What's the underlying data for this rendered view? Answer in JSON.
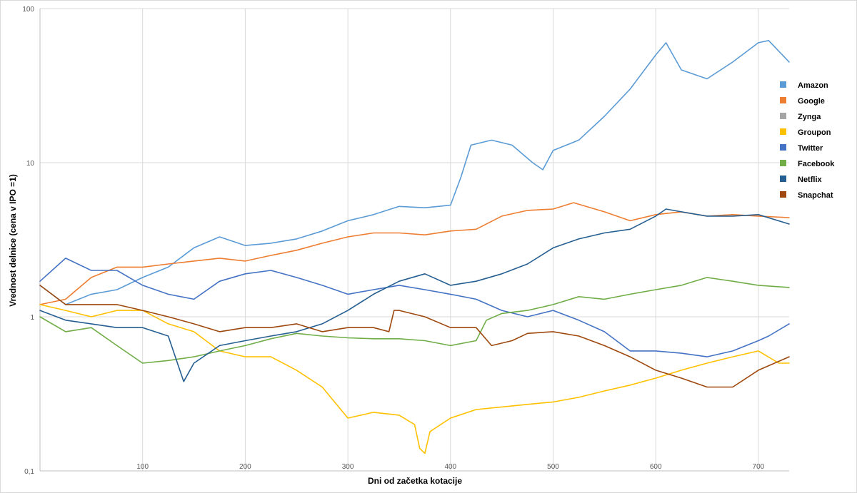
{
  "chart_data": {
    "type": "line",
    "xlabel": "Dni od začetka kotacije",
    "ylabel": "Vrednost delnice   (cena v IPO =1)",
    "yscale": "log",
    "xlim": [
      0,
      730
    ],
    "ylim": [
      0.1,
      100
    ],
    "xticks": [
      100,
      200,
      300,
      400,
      500,
      600,
      700
    ],
    "yticks": [
      0.1,
      1,
      10,
      100
    ],
    "ytick_labels": [
      "0,1",
      "1",
      "10",
      "100"
    ],
    "grid": true,
    "legend_position": "right",
    "series": [
      {
        "name": "Amazon",
        "color": "#5b9bd5",
        "x": [
          0,
          25,
          50,
          75,
          100,
          125,
          150,
          175,
          200,
          225,
          250,
          275,
          300,
          325,
          350,
          375,
          400,
          410,
          420,
          440,
          460,
          480,
          490,
          500,
          525,
          550,
          575,
          600,
          610,
          625,
          650,
          675,
          700,
          710,
          730
        ],
        "y": [
          1.6,
          1.2,
          1.4,
          1.5,
          1.8,
          2.1,
          2.8,
          3.3,
          2.9,
          3.0,
          3.2,
          3.6,
          4.2,
          4.6,
          5.2,
          5.1,
          5.3,
          8,
          13,
          14,
          13,
          10,
          9,
          12,
          14,
          20,
          30,
          50,
          60,
          40,
          35,
          45,
          60,
          62,
          45
        ]
      },
      {
        "name": "Google",
        "color": "#ed7d31",
        "x": [
          0,
          25,
          50,
          75,
          100,
          125,
          150,
          175,
          200,
          225,
          250,
          275,
          300,
          325,
          350,
          375,
          400,
          425,
          450,
          475,
          500,
          520,
          550,
          575,
          600,
          625,
          650,
          675,
          700,
          730
        ],
        "y": [
          1.2,
          1.3,
          1.8,
          2.1,
          2.1,
          2.2,
          2.3,
          2.4,
          2.3,
          2.5,
          2.7,
          3.0,
          3.3,
          3.5,
          3.5,
          3.4,
          3.6,
          3.7,
          4.5,
          4.9,
          5.0,
          5.5,
          4.8,
          4.2,
          4.6,
          4.8,
          4.5,
          4.6,
          4.5,
          4.4
        ]
      },
      {
        "name": "Groupon",
        "color": "#ffc000",
        "x": [
          0,
          25,
          50,
          75,
          100,
          125,
          150,
          175,
          200,
          225,
          250,
          275,
          300,
          325,
          350,
          365,
          370,
          375,
          380,
          400,
          425,
          450,
          475,
          500,
          525,
          550,
          575,
          600,
          625,
          650,
          675,
          700,
          720,
          730
        ],
        "y": [
          1.2,
          1.1,
          1.0,
          1.1,
          1.1,
          0.9,
          0.8,
          0.6,
          0.55,
          0.55,
          0.45,
          0.35,
          0.22,
          0.24,
          0.23,
          0.2,
          0.14,
          0.13,
          0.18,
          0.22,
          0.25,
          0.26,
          0.27,
          0.28,
          0.3,
          0.33,
          0.36,
          0.4,
          0.45,
          0.5,
          0.55,
          0.6,
          0.5,
          0.5
        ]
      },
      {
        "name": "Twitter",
        "color": "#4472c4",
        "x": [
          0,
          25,
          50,
          75,
          100,
          125,
          150,
          175,
          200,
          225,
          250,
          275,
          300,
          325,
          350,
          375,
          400,
          425,
          450,
          475,
          500,
          525,
          550,
          575,
          600,
          625,
          650,
          675,
          700,
          710,
          730
        ],
        "y": [
          1.7,
          2.4,
          2.0,
          2.0,
          1.6,
          1.4,
          1.3,
          1.7,
          1.9,
          2.0,
          1.8,
          1.6,
          1.4,
          1.5,
          1.6,
          1.5,
          1.4,
          1.3,
          1.1,
          1.0,
          1.1,
          0.95,
          0.8,
          0.6,
          0.6,
          0.58,
          0.55,
          0.6,
          0.7,
          0.75,
          0.9
        ]
      },
      {
        "name": "Facebook",
        "color": "#70ad47",
        "x": [
          0,
          25,
          50,
          75,
          100,
          125,
          150,
          175,
          200,
          225,
          250,
          275,
          300,
          325,
          350,
          375,
          400,
          425,
          435,
          450,
          475,
          500,
          525,
          550,
          575,
          600,
          625,
          650,
          675,
          700,
          730
        ],
        "y": [
          1.0,
          0.8,
          0.85,
          0.65,
          0.5,
          0.52,
          0.55,
          0.6,
          0.65,
          0.72,
          0.78,
          0.75,
          0.73,
          0.72,
          0.72,
          0.7,
          0.65,
          0.7,
          0.95,
          1.05,
          1.1,
          1.2,
          1.35,
          1.3,
          1.4,
          1.5,
          1.6,
          1.8,
          1.7,
          1.6,
          1.55
        ]
      },
      {
        "name": "Netflix",
        "color": "#255e91",
        "x": [
          0,
          25,
          50,
          75,
          100,
          125,
          140,
          150,
          175,
          200,
          225,
          250,
          275,
          300,
          325,
          350,
          375,
          400,
          425,
          450,
          475,
          500,
          525,
          550,
          575,
          600,
          610,
          625,
          650,
          675,
          700,
          730
        ],
        "y": [
          1.1,
          0.95,
          0.9,
          0.85,
          0.85,
          0.75,
          0.38,
          0.5,
          0.65,
          0.7,
          0.75,
          0.8,
          0.9,
          1.1,
          1.4,
          1.7,
          1.9,
          1.6,
          1.7,
          1.9,
          2.2,
          2.8,
          3.2,
          3.5,
          3.7,
          4.5,
          5,
          4.8,
          4.5,
          4.5,
          4.6,
          4.0
        ]
      },
      {
        "name": "Snapchat",
        "color": "#9e480e",
        "x": [
          0,
          25,
          50,
          75,
          100,
          125,
          150,
          175,
          200,
          225,
          250,
          275,
          300,
          325,
          340,
          345,
          350,
          375,
          400,
          425,
          440,
          460,
          475,
          500,
          525,
          550,
          575,
          600,
          625,
          650,
          675,
          700,
          730
        ],
        "y": [
          1.6,
          1.2,
          1.2,
          1.2,
          1.1,
          1.0,
          0.9,
          0.8,
          0.85,
          0.85,
          0.9,
          0.8,
          0.85,
          0.85,
          0.8,
          1.1,
          1.1,
          1.0,
          0.85,
          0.85,
          0.65,
          0.7,
          0.78,
          0.8,
          0.75,
          0.65,
          0.55,
          0.45,
          0.4,
          0.35,
          0.35,
          0.45,
          0.55
        ]
      }
    ]
  }
}
